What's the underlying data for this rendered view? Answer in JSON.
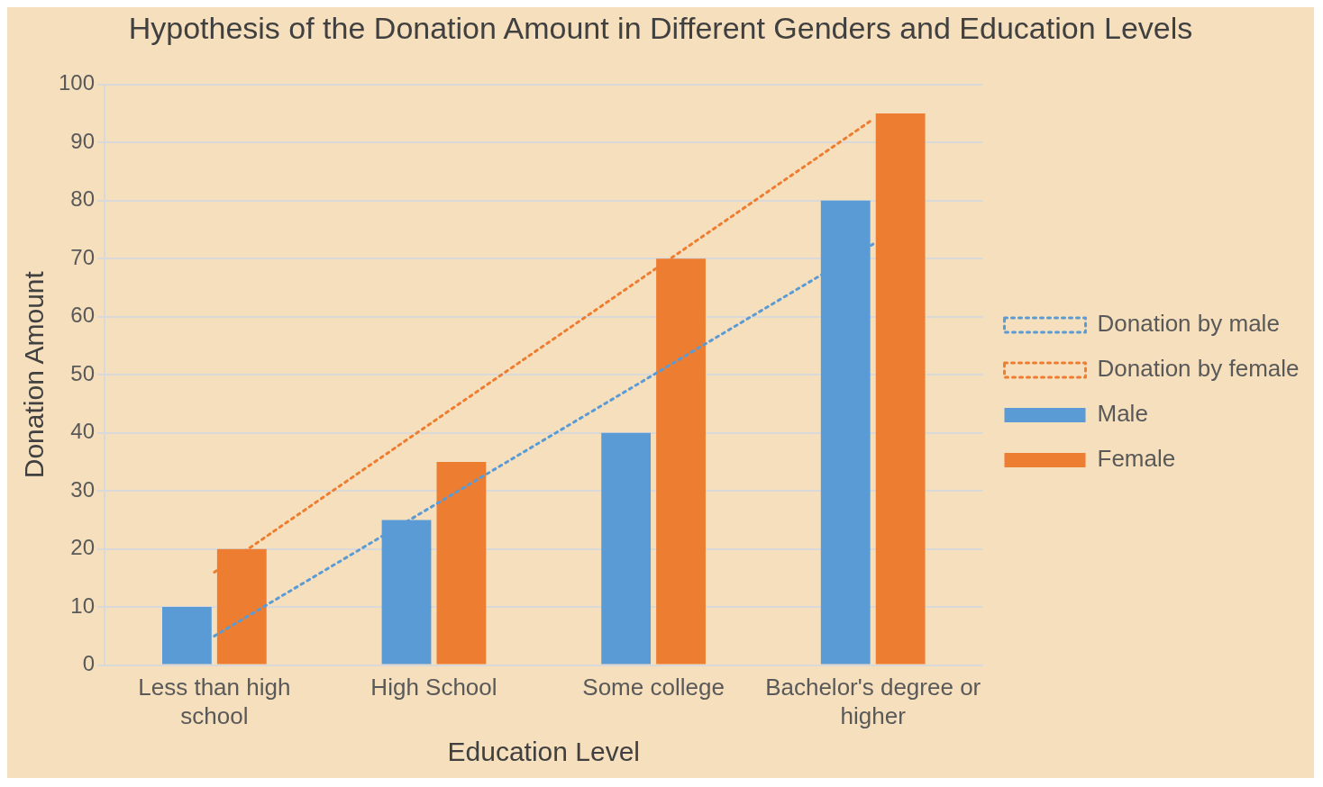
{
  "chart_data": {
    "type": "bar",
    "title": "Hypothesis of the Donation Amount in Different Genders and Education Levels",
    "xlabel": "Education Level",
    "ylabel": "Donation Amount",
    "categories": [
      "Less than high school",
      "High School",
      "Some college",
      "Bachelor's degree or higher"
    ],
    "series": [
      {
        "name": "Male",
        "color": "#5b9bd5",
        "values": [
          10,
          25,
          40,
          80
        ]
      },
      {
        "name": "Female",
        "color": "#ed7d31",
        "values": [
          20,
          35,
          70,
          95
        ]
      },
      {
        "name": "Donation by male",
        "type": "line",
        "line_style": "dotted",
        "marker": "none",
        "color": "#5b9bd5",
        "values": [
          5,
          27.5,
          50,
          72.5
        ]
      },
      {
        "name": "Donation by female",
        "type": "line",
        "line_style": "dotted",
        "marker": "none",
        "color": "#ed7d31",
        "values": [
          16,
          42,
          68,
          94
        ]
      }
    ],
    "ylim": [
      0,
      100
    ],
    "yticks": [
      0,
      10,
      20,
      30,
      40,
      50,
      60,
      70,
      80,
      90,
      100
    ],
    "grid": "y",
    "legend": "right"
  }
}
